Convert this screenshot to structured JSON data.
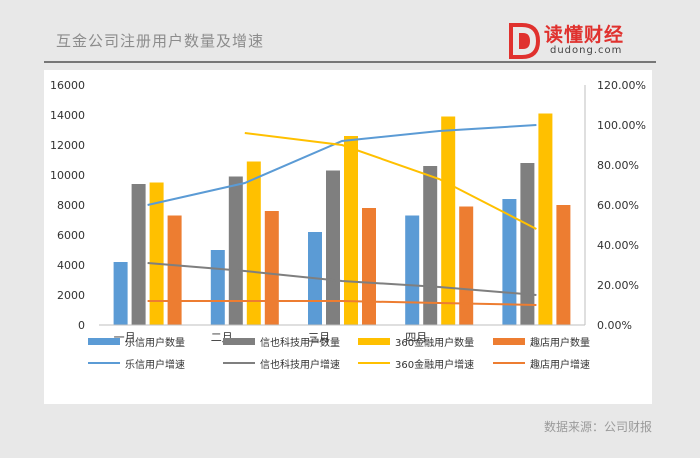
{
  "page": {
    "title": "互金公司注册用户数量及增速",
    "source": "数据来源：公司财报"
  },
  "logo": {
    "name": "读懂财经",
    "url": "dudong.com",
    "color": "#e0312e"
  },
  "chart_data": {
    "type": "bar",
    "categories": [
      "一月",
      "二月",
      "三月",
      "四月",
      ""
    ],
    "ylim": [
      0,
      16000
    ],
    "y_ticks": [
      "0",
      "2000",
      "4000",
      "6000",
      "8000",
      "10000",
      "12000",
      "14000",
      "16000"
    ],
    "y2lim": [
      0,
      120
    ],
    "y2_ticks": [
      "0.00%",
      "20.00%",
      "40.00%",
      "60.00%",
      "80.00%",
      "100.00%",
      "120.00%"
    ],
    "grid": false,
    "legend_position": "bottom",
    "bar_series": [
      {
        "name": "乐信用户数量",
        "color": "#5b9bd5",
        "values": [
          4200,
          5000,
          6200,
          7300,
          8400
        ]
      },
      {
        "name": "信也科技用户数量",
        "color": "#7f7f7f",
        "values": [
          9400,
          9900,
          10300,
          10600,
          10800
        ]
      },
      {
        "name": "360金融用户数量",
        "color": "#ffc000",
        "values": [
          9500,
          10900,
          12600,
          13900,
          14100
        ]
      },
      {
        "name": "趣店用户数量",
        "color": "#ed7d31",
        "values": [
          7300,
          7600,
          7800,
          7900,
          8000
        ]
      }
    ],
    "line_series": [
      {
        "name": "乐信用户增速",
        "color": "#5b9bd5",
        "values": [
          60,
          71,
          92,
          97,
          100
        ]
      },
      {
        "name": "信也科技用户增速",
        "color": "#7f7f7f",
        "values": [
          31,
          27,
          22,
          19,
          15
        ]
      },
      {
        "name": "360金融用户增速",
        "color": "#ffc000",
        "values": [
          null,
          96,
          90,
          73,
          48
        ]
      },
      {
        "name": "趣店用户增速",
        "color": "#ed7d31",
        "values": [
          12,
          12,
          12,
          11,
          10
        ]
      }
    ]
  }
}
